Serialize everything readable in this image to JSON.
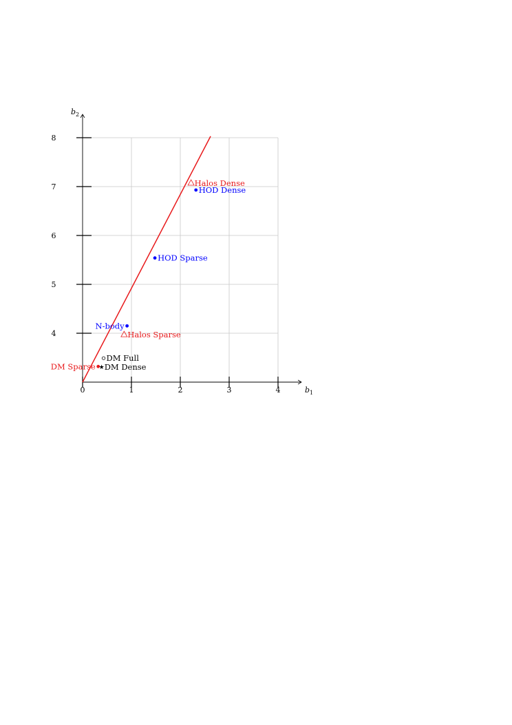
{
  "chart_data": {
    "type": "scatter",
    "xlabel": "b",
    "xlabel_sub": "1",
    "ylabel": "b",
    "ylabel_sub": "2",
    "x_ticks": [
      0,
      1,
      2,
      3,
      4
    ],
    "y_ticks": [
      4,
      5,
      6,
      7,
      8
    ],
    "xlim": [
      0,
      4
    ],
    "ylim": [
      3,
      8
    ],
    "grid": true,
    "line": {
      "color": "#e8191b",
      "x": [
        0,
        2.62
      ],
      "y": [
        3.0,
        8.03
      ]
    },
    "points": [
      {
        "label": "Halos Dense",
        "x": 2.22,
        "y": 7.07,
        "marker": "triangle",
        "color": "#e8191b",
        "label_side": "right"
      },
      {
        "label": "HOD Dense",
        "x": 2.32,
        "y": 6.93,
        "marker": "dot",
        "color": "#0000ff",
        "label_side": "right"
      },
      {
        "label": "HOD Sparse",
        "x": 1.48,
        "y": 5.54,
        "marker": "dot",
        "color": "#0000ff",
        "label_side": "right"
      },
      {
        "label": "N-body",
        "x": 0.91,
        "y": 4.15,
        "marker": "dot",
        "color": "#0000ff",
        "label_side": "left"
      },
      {
        "label": "Halos Sparse",
        "x": 0.85,
        "y": 3.97,
        "marker": "triangle",
        "color": "#e8191b",
        "label_side": "right"
      },
      {
        "label": "DM Full",
        "x": 0.43,
        "y": 3.49,
        "marker": "circle",
        "color": "#000000",
        "label_side": "right"
      },
      {
        "label": "DM Sparse",
        "x": 0.32,
        "y": 3.32,
        "marker": "dot",
        "color": "#e8191b",
        "label_side": "left"
      },
      {
        "label": "DM Dense",
        "x": 0.39,
        "y": 3.31,
        "marker": "star",
        "color": "#000000",
        "label_side": "right"
      }
    ]
  }
}
